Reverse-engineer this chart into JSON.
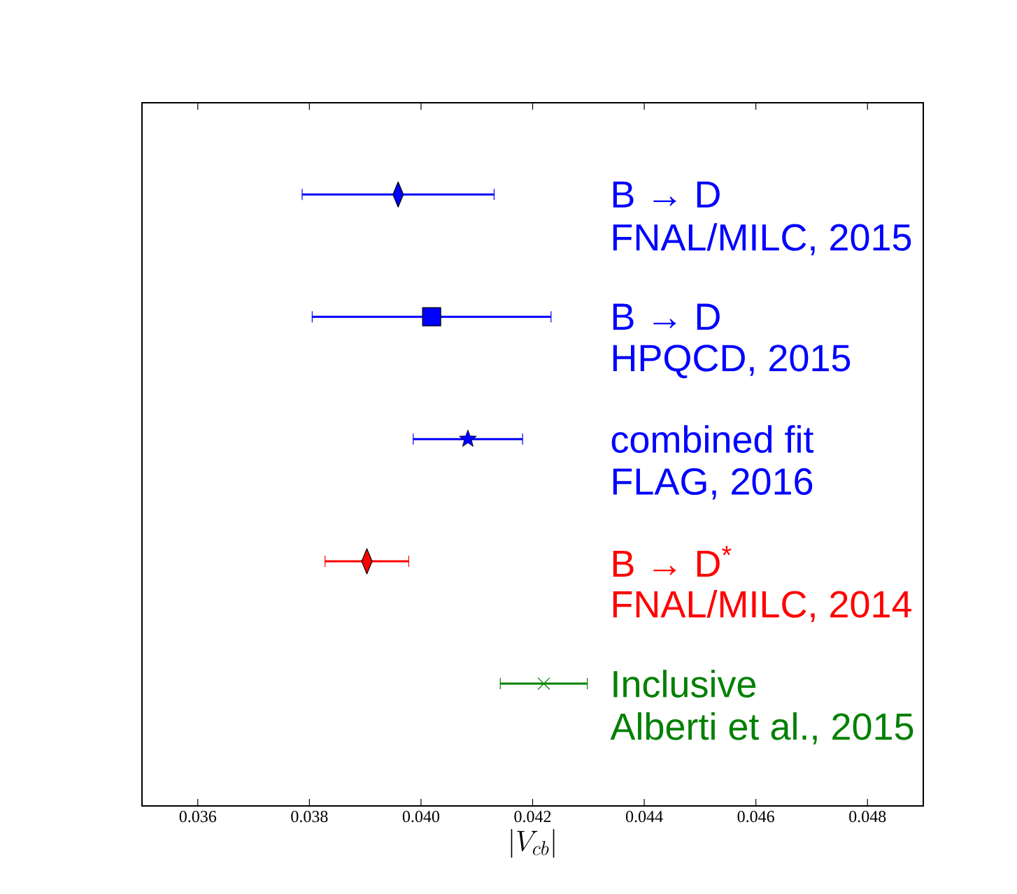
{
  "chart_data": {
    "type": "scatter",
    "orientation": "horizontal",
    "xlabel": "|V_{cb}|",
    "categories": [
      "B → D",
      "B → D",
      "combined fit",
      "B → D$^{*}$",
      "Inclusive"
    ],
    "series": [
      {
        "color": "#0000ff",
        "marker": "diamond",
        "values": [
          0.03959,
          null,
          null,
          null,
          null
        ],
        "errors": [
          0.00172,
          null,
          null,
          null,
          null
        ]
      },
      {
        "color": "#0000ff",
        "marker": "square",
        "values": [
          null,
          0.04019,
          null,
          null,
          null
        ],
        "errors": [
          null,
          0.00214,
          null,
          null,
          null
        ]
      },
      {
        "color": "#0000ff",
        "marker": "star",
        "values": [
          null,
          null,
          0.04084,
          null,
          null
        ],
        "errors": [
          null,
          null,
          0.00098,
          null,
          null
        ]
      },
      {
        "color": "#ff0000",
        "marker": "diamond",
        "values": [
          null,
          null,
          null,
          0.03903,
          null
        ],
        "errors": [
          null,
          null,
          null,
          0.00075,
          null
        ]
      },
      {
        "color": "#008000",
        "marker": "cross",
        "values": [
          null,
          null,
          null,
          null,
          0.0422
        ],
        "errors": [
          null,
          null,
          null,
          null,
          0.00078
        ]
      }
    ],
    "annotations": [
      "FNAL/MILC, 2015",
      "HPQCD, 2015",
      "FLAG, 2016",
      "FNAL/MILC, 2014",
      "Alberti et al., 2015"
    ],
    "xlim": [
      0.035,
      0.049
    ],
    "xticks": [
      {
        "value": 0.036,
        "label": "0.036"
      },
      {
        "value": 0.038,
        "label": "0.038"
      },
      {
        "value": 0.04,
        "label": "0.040"
      },
      {
        "value": 0.042,
        "label": "0.042"
      },
      {
        "value": 0.044,
        "label": "0.044"
      },
      {
        "value": 0.046,
        "label": "0.046"
      },
      {
        "value": 0.048,
        "label": "0.048"
      }
    ],
    "grid": false
  }
}
